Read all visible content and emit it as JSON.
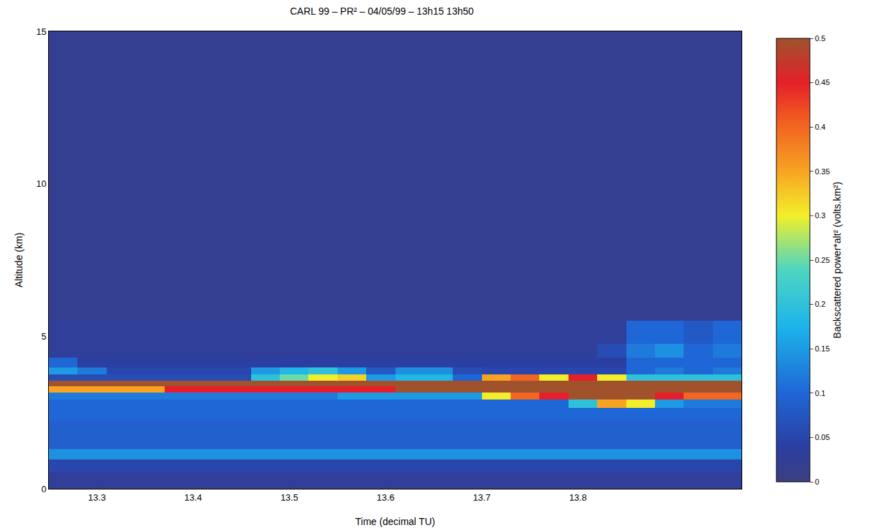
{
  "chart_data": {
    "type": "heatmap",
    "title": "CARL 99 – PR² – 04/05/99 – 13h15 13h50",
    "x_label": "Time (decimal TU)",
    "y_label": "Altitude (km)",
    "xlim": [
      13.25,
      13.97
    ],
    "ylim": [
      0,
      15
    ],
    "xticks": [
      13.3,
      13.4,
      13.5,
      13.6,
      13.7,
      13.8
    ],
    "yticks": [
      0,
      5,
      10,
      15
    ],
    "x": [
      13.265,
      13.295,
      13.325,
      13.355,
      13.385,
      13.415,
      13.445,
      13.475,
      13.505,
      13.535,
      13.565,
      13.595,
      13.625,
      13.655,
      13.685,
      13.715,
      13.745,
      13.775,
      13.805,
      13.835,
      13.865,
      13.895,
      13.925,
      13.955
    ],
    "y": [
      0.3,
      0.8,
      1.1,
      1.5,
      2.0,
      2.5,
      2.8,
      3.05,
      3.25,
      3.45,
      3.65,
      3.85,
      4.1,
      4.5,
      5.0,
      6.0,
      9.0,
      13.0
    ],
    "z": [
      [
        0.03,
        0.03,
        0.03,
        0.03,
        0.03,
        0.03,
        0.03,
        0.03,
        0.03,
        0.03,
        0.03,
        0.03,
        0.03,
        0.03,
        0.03,
        0.03,
        0.03,
        0.03,
        0.03,
        0.03,
        0.03,
        0.03,
        0.03,
        0.03
      ],
      [
        0.05,
        0.05,
        0.05,
        0.05,
        0.05,
        0.05,
        0.05,
        0.05,
        0.05,
        0.05,
        0.05,
        0.05,
        0.05,
        0.05,
        0.05,
        0.05,
        0.05,
        0.05,
        0.05,
        0.05,
        0.05,
        0.05,
        0.05,
        0.05
      ],
      [
        0.14,
        0.14,
        0.14,
        0.14,
        0.14,
        0.14,
        0.14,
        0.14,
        0.14,
        0.14,
        0.14,
        0.14,
        0.14,
        0.14,
        0.14,
        0.14,
        0.14,
        0.14,
        0.14,
        0.14,
        0.14,
        0.14,
        0.14,
        0.14
      ],
      [
        0.09,
        0.09,
        0.09,
        0.09,
        0.09,
        0.09,
        0.09,
        0.09,
        0.09,
        0.09,
        0.09,
        0.09,
        0.09,
        0.09,
        0.09,
        0.09,
        0.09,
        0.09,
        0.09,
        0.09,
        0.09,
        0.09,
        0.09,
        0.09
      ],
      [
        0.09,
        0.09,
        0.09,
        0.09,
        0.09,
        0.09,
        0.09,
        0.09,
        0.09,
        0.09,
        0.09,
        0.09,
        0.09,
        0.09,
        0.09,
        0.09,
        0.09,
        0.09,
        0.09,
        0.09,
        0.09,
        0.09,
        0.09,
        0.09
      ],
      [
        0.1,
        0.1,
        0.1,
        0.1,
        0.1,
        0.1,
        0.1,
        0.1,
        0.1,
        0.1,
        0.1,
        0.1,
        0.1,
        0.1,
        0.1,
        0.1,
        0.1,
        0.1,
        0.1,
        0.1,
        0.1,
        0.1,
        0.1,
        0.1
      ],
      [
        0.1,
        0.1,
        0.1,
        0.1,
        0.1,
        0.1,
        0.1,
        0.1,
        0.1,
        0.1,
        0.1,
        0.1,
        0.1,
        0.1,
        0.1,
        0.1,
        0.1,
        0.1,
        0.2,
        0.35,
        0.3,
        0.15,
        0.12,
        0.12
      ],
      [
        0.12,
        0.12,
        0.12,
        0.12,
        0.12,
        0.12,
        0.12,
        0.12,
        0.12,
        0.12,
        0.15,
        0.15,
        0.15,
        0.15,
        0.15,
        0.3,
        0.4,
        0.45,
        0.5,
        0.5,
        0.5,
        0.45,
        0.4,
        0.4
      ],
      [
        0.35,
        0.35,
        0.35,
        0.35,
        0.45,
        0.45,
        0.45,
        0.45,
        0.45,
        0.45,
        0.45,
        0.45,
        0.5,
        0.5,
        0.5,
        0.5,
        0.5,
        0.5,
        0.5,
        0.5,
        0.5,
        0.5,
        0.5,
        0.5
      ],
      [
        0.5,
        0.5,
        0.5,
        0.5,
        0.5,
        0.5,
        0.5,
        0.5,
        0.5,
        0.5,
        0.5,
        0.5,
        0.5,
        0.5,
        0.5,
        0.5,
        0.5,
        0.5,
        0.5,
        0.5,
        0.5,
        0.5,
        0.5,
        0.5
      ],
      [
        0.06,
        0.06,
        0.06,
        0.06,
        0.06,
        0.06,
        0.06,
        0.2,
        0.25,
        0.3,
        0.32,
        0.15,
        0.18,
        0.18,
        0.1,
        0.35,
        0.4,
        0.3,
        0.45,
        0.3,
        0.2,
        0.2,
        0.2,
        0.2
      ],
      [
        0.15,
        0.12,
        0.05,
        0.05,
        0.05,
        0.05,
        0.05,
        0.15,
        0.18,
        0.2,
        0.15,
        0.08,
        0.14,
        0.14,
        0.06,
        0.05,
        0.05,
        0.05,
        0.05,
        0.05,
        0.1,
        0.12,
        0.1,
        0.12
      ],
      [
        0.1,
        0.04,
        0.04,
        0.04,
        0.04,
        0.04,
        0.04,
        0.04,
        0.04,
        0.04,
        0.04,
        0.04,
        0.04,
        0.04,
        0.04,
        0.04,
        0.04,
        0.04,
        0.04,
        0.04,
        0.1,
        0.1,
        0.1,
        0.1
      ],
      [
        0.03,
        0.03,
        0.03,
        0.03,
        0.03,
        0.03,
        0.03,
        0.03,
        0.03,
        0.03,
        0.03,
        0.03,
        0.03,
        0.03,
        0.03,
        0.03,
        0.03,
        0.03,
        0.03,
        0.06,
        0.12,
        0.14,
        0.1,
        0.12
      ],
      [
        0.03,
        0.03,
        0.03,
        0.03,
        0.03,
        0.03,
        0.03,
        0.03,
        0.03,
        0.03,
        0.03,
        0.03,
        0.03,
        0.03,
        0.03,
        0.03,
        0.03,
        0.03,
        0.03,
        0.03,
        0.1,
        0.1,
        0.08,
        0.1
      ],
      [
        0.02,
        0.02,
        0.02,
        0.02,
        0.02,
        0.02,
        0.02,
        0.02,
        0.02,
        0.02,
        0.02,
        0.02,
        0.02,
        0.02,
        0.02,
        0.02,
        0.02,
        0.02,
        0.02,
        0.02,
        0.02,
        0.02,
        0.02,
        0.02
      ],
      [
        0.02,
        0.02,
        0.02,
        0.02,
        0.02,
        0.02,
        0.02,
        0.02,
        0.02,
        0.02,
        0.02,
        0.02,
        0.02,
        0.02,
        0.02,
        0.02,
        0.02,
        0.02,
        0.02,
        0.02,
        0.02,
        0.02,
        0.02,
        0.02
      ],
      [
        0.02,
        0.02,
        0.02,
        0.02,
        0.02,
        0.02,
        0.02,
        0.02,
        0.02,
        0.02,
        0.02,
        0.02,
        0.02,
        0.02,
        0.02,
        0.02,
        0.02,
        0.02,
        0.02,
        0.02,
        0.02,
        0.02,
        0.02,
        0.02
      ]
    ],
    "colorbar": {
      "title": "Backscattered power*alt² (volts.km²)",
      "range": [
        0,
        0.5
      ],
      "ticks": [
        0,
        0.05,
        0.1,
        0.15,
        0.2,
        0.25,
        0.3,
        0.35,
        0.4,
        0.45,
        0.5
      ]
    }
  }
}
